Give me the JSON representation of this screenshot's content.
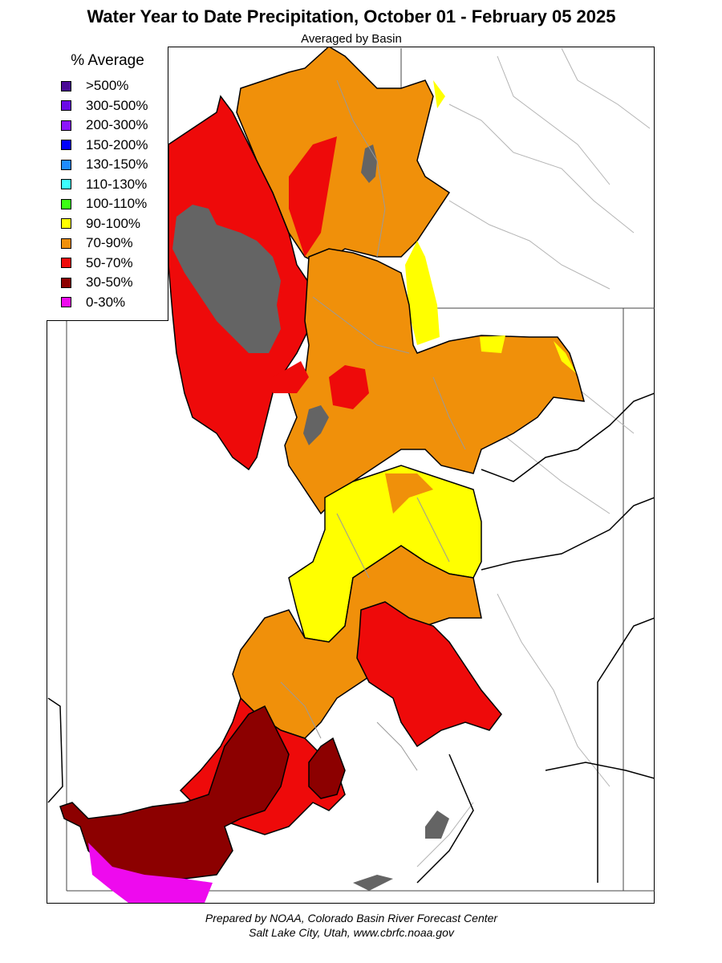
{
  "title": "Water Year to Date Precipitation, October 01  - February 05 2025",
  "subtitle": "Averaged by Basin",
  "legend": {
    "title": "% Average",
    "items": [
      {
        "label": ">500%",
        "color": "#4a0a96"
      },
      {
        "label": "300-500%",
        "color": "#6a0ae6"
      },
      {
        "label": "200-300%",
        "color": "#8c14ff"
      },
      {
        "label": "150-200%",
        "color": "#0000ff"
      },
      {
        "label": "130-150%",
        "color": "#1e8cff"
      },
      {
        "label": "110-130%",
        "color": "#3cffff"
      },
      {
        "label": "100-110%",
        "color": "#3cff14"
      },
      {
        "label": "90-100%",
        "color": "#ffff00"
      },
      {
        "label": "70-90%",
        "color": "#f0900a"
      },
      {
        "label": "50-70%",
        "color": "#ee0a0a"
      },
      {
        "label": "30-50%",
        "color": "#8c0000"
      },
      {
        "label": "0-30%",
        "color": "#ee0aee"
      }
    ]
  },
  "colors": {
    "lake": "#646464",
    "river": "#9a9a9a",
    "state_line": "#000000"
  },
  "footer": {
    "line1": "Prepared by NOAA, Colorado Basin River Forecast Center",
    "line2": "Salt Lake City, Utah, www.cbrfc.noaa.gov"
  }
}
